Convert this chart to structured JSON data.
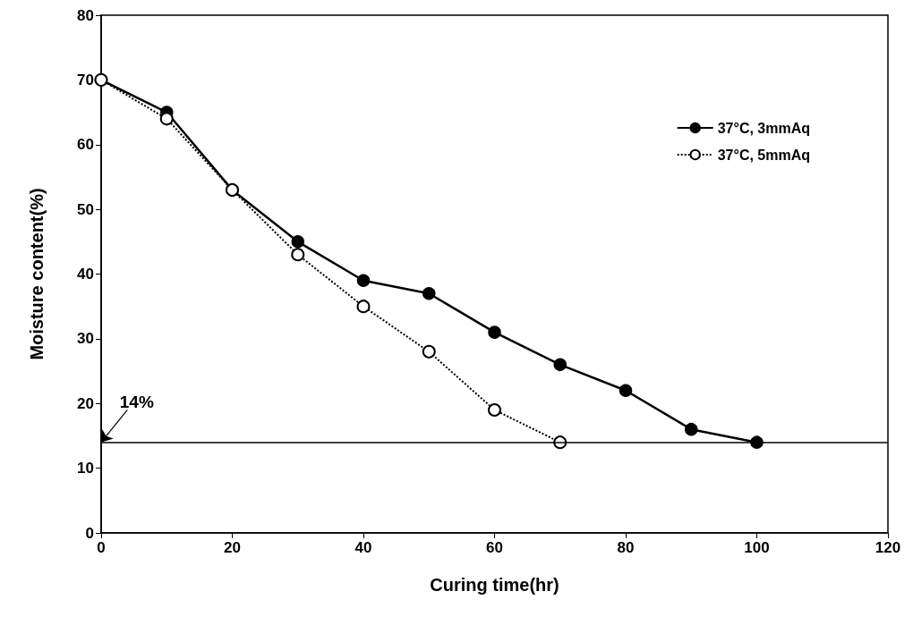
{
  "chart_data": {
    "type": "line",
    "xlabel": "Curing time(hr)",
    "ylabel": "Moisture content(%)",
    "x": [
      0,
      10,
      20,
      30,
      40,
      50,
      60,
      70,
      80,
      90,
      100
    ],
    "series": [
      {
        "name": "37°C, 3mmAq",
        "color": "#000000",
        "line_style": "solid",
        "values": [
          70,
          65,
          53,
          45,
          39,
          37,
          31,
          26,
          22,
          16,
          14
        ]
      },
      {
        "name": "37°C, 5mmAq",
        "color": "#000000",
        "line_style": "dotted",
        "x": [
          0,
          10,
          20,
          30,
          40,
          50,
          60,
          70
        ],
        "values": [
          70,
          64,
          53,
          43,
          35,
          28,
          19,
          14
        ]
      }
    ],
    "xlim": [
      0,
      120
    ],
    "xticks": [
      0,
      20,
      40,
      60,
      80,
      100,
      120
    ],
    "ylim": [
      0,
      80
    ],
    "yticks": [
      0,
      10,
      20,
      30,
      40,
      50,
      60,
      70,
      80
    ],
    "ref_lines": [
      {
        "axis": "y",
        "value": 14,
        "color": "#000000"
      }
    ],
    "annotations": [
      {
        "text": "14%",
        "x": 0,
        "y": 14
      }
    ],
    "marker": "circle",
    "grid": false,
    "legend": "top right"
  }
}
